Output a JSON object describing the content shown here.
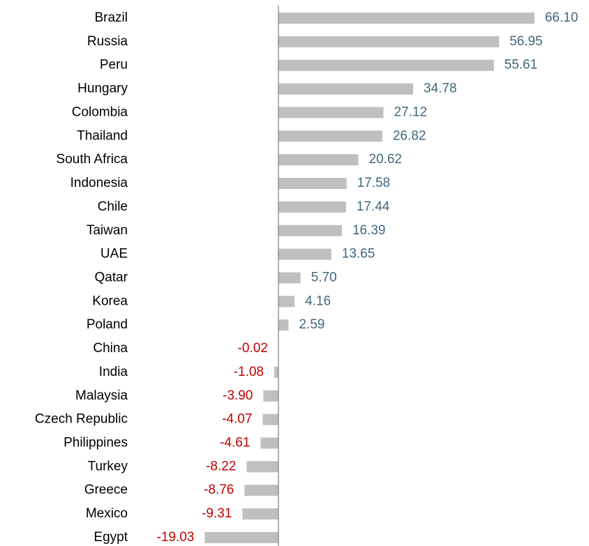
{
  "chart_data": {
    "type": "barh",
    "categories": [
      "Brazil",
      "Russia",
      "Peru",
      "Hungary",
      "Colombia",
      "Thailand",
      "South Africa",
      "Indonesia",
      "Chile",
      "Taiwan",
      "UAE",
      "Qatar",
      "Korea",
      "Poland",
      "China",
      "India",
      "Malaysia",
      "Czech Republic",
      "Philippines",
      "Turkey",
      "Greece",
      "Mexico",
      "Egypt"
    ],
    "values": [
      66.1,
      56.95,
      55.61,
      34.78,
      27.12,
      26.82,
      20.62,
      17.58,
      17.44,
      16.39,
      13.65,
      5.7,
      4.16,
      2.59,
      -0.02,
      -1.08,
      -3.9,
      -4.07,
      -4.61,
      -8.22,
      -8.76,
      -9.31,
      -19.03
    ],
    "value_labels": [
      "66.10",
      "56.95",
      "55.61",
      "34.78",
      "27.12",
      "26.82",
      "20.62",
      "17.58",
      "17.44",
      "16.39",
      "13.65",
      "5.70",
      "4.16",
      "2.59",
      "-0.02",
      "-1.08",
      "-3.90",
      "-4.07",
      "-4.61",
      "-8.22",
      "-8.76",
      "-9.31",
      "-19.03"
    ],
    "color": "#bfbfbf",
    "label_colors": {
      "positive": "#41677d",
      "negative": "#c00000"
    },
    "xlim": [
      -20,
      70
    ]
  }
}
